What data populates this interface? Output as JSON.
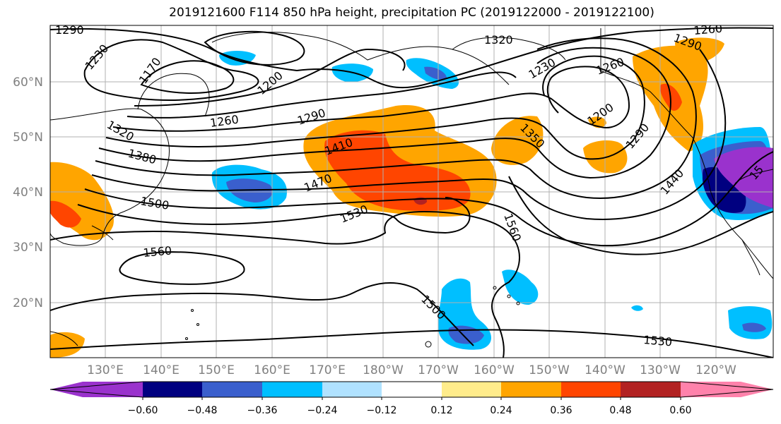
{
  "title": "2019121600 F114 850 hPa height, precipitation PC (2019122000 - 2019122100)",
  "lat_labels": [
    "60°N",
    "50°N",
    "40°N",
    "30°N",
    "20°N"
  ],
  "lon_labels": [
    "130°E",
    "140°E",
    "150°E",
    "160°E",
    "170°E",
    "180°W",
    "170°W",
    "160°W",
    "150°W",
    "140°W",
    "130°W",
    "120°W"
  ],
  "contour_labels": [
    "1290",
    "1230",
    "1170",
    "1200",
    "1260",
    "1290",
    "1320",
    "1320",
    "1380",
    "1410",
    "1470",
    "1500",
    "1530",
    "1560",
    "1560",
    "1500",
    "1530",
    "1350",
    "1230",
    "1260",
    "1200",
    "1290",
    "1260",
    "1290",
    "1440",
    "15"
  ],
  "colorbar": {
    "colors": [
      "#9a32cd",
      "#000080",
      "#3a5fcd",
      "#00bfff",
      "#b0e2ff",
      "#ffffff",
      "#ffec8b",
      "#ffa500",
      "#ff4500",
      "#b22222",
      "#ff82ab"
    ],
    "tick_labels": [
      "−0.60",
      "−0.48",
      "−0.36",
      "−0.24",
      "−0.12",
      "0.12",
      "0.24",
      "0.36",
      "0.48",
      "0.60"
    ]
  }
}
